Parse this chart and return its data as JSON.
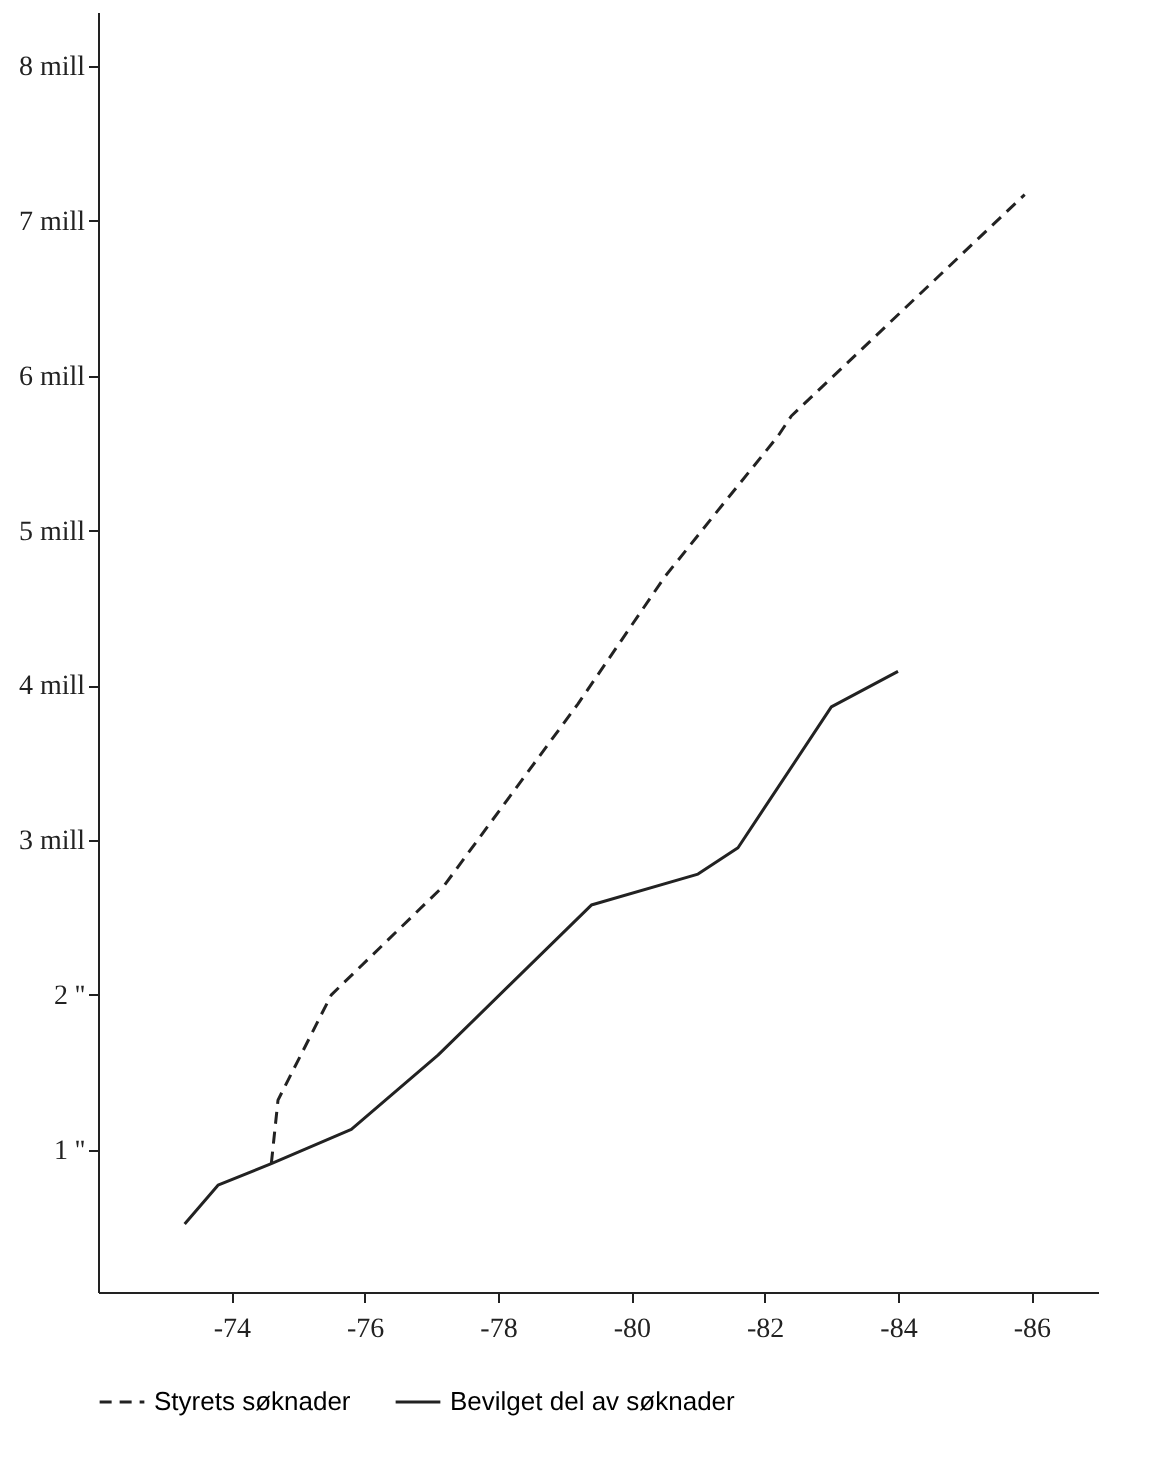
{
  "chart_data": {
    "type": "line",
    "xlim": [
      -72,
      -87
    ],
    "xticks": [
      -74,
      -76,
      -78,
      -80,
      -82,
      -84,
      -86
    ],
    "ylim": [
      0.08,
      8.35
    ],
    "yticks": [
      {
        "value": 1,
        "label": "1 ''"
      },
      {
        "value": 2,
        "label": "2 ''"
      },
      {
        "value": 3,
        "label": "3 mill"
      },
      {
        "value": 4,
        "label": "4 mill"
      },
      {
        "value": 5,
        "label": "5 mill"
      },
      {
        "value": 6,
        "label": "6 mill"
      },
      {
        "value": 7,
        "label": "7 mill"
      },
      {
        "value": 8,
        "label": "8 mill"
      }
    ],
    "legend": "bottom",
    "grid": false,
    "series": [
      {
        "name": "Styrets søknader",
        "color": "#222222",
        "line_style": "dashed",
        "x": [
          -74.6,
          -74.7,
          -75.5,
          -77.2,
          -79.2,
          -80.5,
          -81.3,
          -82.2,
          -82.4,
          -85.9
        ],
        "values": [
          0.91,
          1.32,
          2.0,
          2.71,
          3.88,
          4.7,
          5.13,
          5.61,
          5.74,
          7.17
        ]
      },
      {
        "name": "Bevilget del av søknader",
        "color": "#222222",
        "line_style": "solid",
        "x": [
          -73.3,
          -73.8,
          -74.6,
          -75.8,
          -77.1,
          -79.4,
          -81.0,
          -81.6,
          -83.0,
          -84.0
        ],
        "values": [
          0.52,
          0.77,
          0.91,
          1.13,
          1.61,
          2.58,
          2.78,
          2.95,
          3.86,
          4.09
        ]
      }
    ]
  }
}
